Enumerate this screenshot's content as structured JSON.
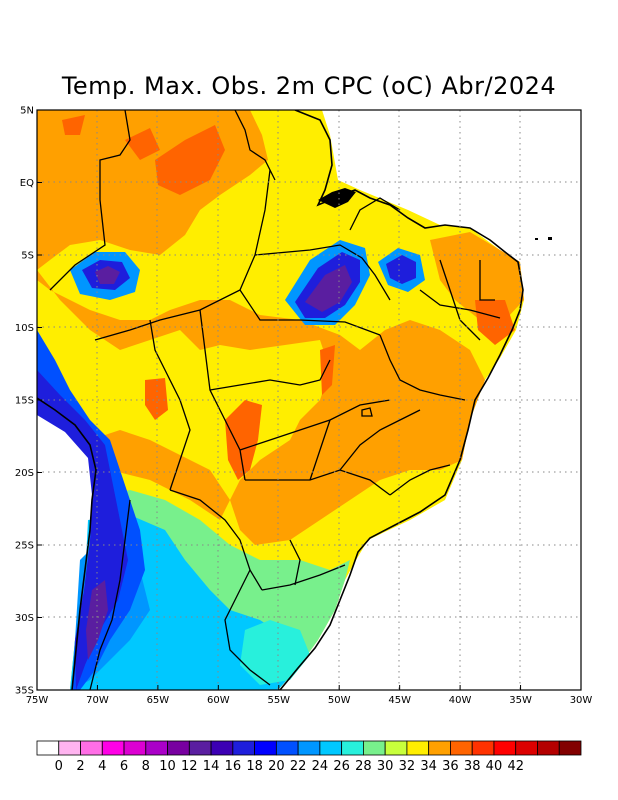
{
  "title": "Temp. Max. Obs. 2m CPC (oC) Abr/2024",
  "map": {
    "lat_labels": [
      "5N",
      "EQ",
      "5S",
      "10S",
      "15S",
      "20S",
      "25S",
      "30S",
      "35S"
    ],
    "lon_labels": [
      "75W",
      "70W",
      "65W",
      "60W",
      "55W",
      "50W",
      "45W",
      "40W",
      "35W",
      "30W"
    ],
    "lon_range": [
      -75,
      -30
    ],
    "lat_range": [
      -35,
      5
    ]
  },
  "colorbar": {
    "labels": [
      "0",
      "2",
      "4",
      "6",
      "8",
      "10",
      "12",
      "14",
      "16",
      "18",
      "20",
      "22",
      "24",
      "26",
      "28",
      "30",
      "32",
      "34",
      "36",
      "38",
      "40",
      "42"
    ],
    "colors": [
      "#ffffff",
      "#ffb4f0",
      "#ff6ee6",
      "#ff00e6",
      "#dc00d2",
      "#aa00c8",
      "#7800a0",
      "#5a1ea0",
      "#3c00b4",
      "#1e1edc",
      "#0000ff",
      "#0050ff",
      "#0096ff",
      "#00c8ff",
      "#28f0dc",
      "#78f08c",
      "#c8ff3c",
      "#ffee00",
      "#ffa000",
      "#ff6400",
      "#ff3200",
      "#ff0000",
      "#dc0000",
      "#b40000",
      "#820000"
    ]
  }
}
